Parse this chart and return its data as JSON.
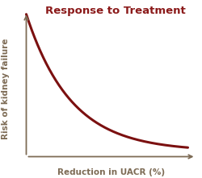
{
  "title": "Response to Treatment",
  "title_color": "#8B1A1A",
  "xlabel": "Reduction in UACR (%)",
  "ylabel": "Risk of kidney failure",
  "axis_color": "#7D6B55",
  "curve_color": "#7B1010",
  "background_color": "#FFFFFF",
  "title_fontsize": 9.5,
  "label_fontsize": 7.5,
  "curve_linewidth": 2.2,
  "axis_linewidth": 1.3,
  "arrow_mutation_scale": 8
}
